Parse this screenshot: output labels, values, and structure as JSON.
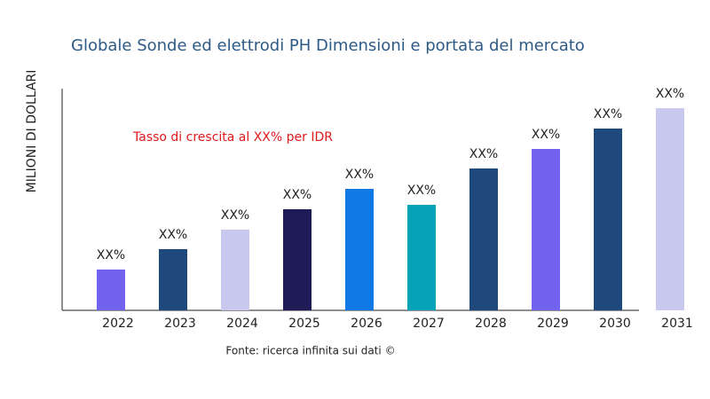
{
  "chart_data": {
    "type": "bar",
    "title": "Globale Sonde ed elettrodi PH Dimensioni e portata del mercato",
    "y_label": "MILIONI DI DOLLARI",
    "annotation": "Tasso di crescita al XX% per IDR",
    "source": "Fonte: ricerca infinita sui dati ©",
    "categories": [
      "2022",
      "2023",
      "2024",
      "2025",
      "2026",
      "2027",
      "2028",
      "2029",
      "2030",
      "2031"
    ],
    "values": [
      46,
      69,
      91,
      114,
      137,
      119,
      160,
      182,
      205,
      228
    ],
    "value_labels": [
      "XX%",
      "XX%",
      "XX%",
      "XX%",
      "XX%",
      "XX%",
      "XX%",
      "XX%",
      "XX%",
      "XX%"
    ],
    "colors": [
      "#7163f0",
      "#1f497d",
      "#c9c9f0",
      "#1e1b57",
      "#1179e6",
      "#04a3b8",
      "#1f497d",
      "#7163f0",
      "#1f497d",
      "#c9c9f0"
    ],
    "ylim": [
      0,
      250
    ]
  }
}
